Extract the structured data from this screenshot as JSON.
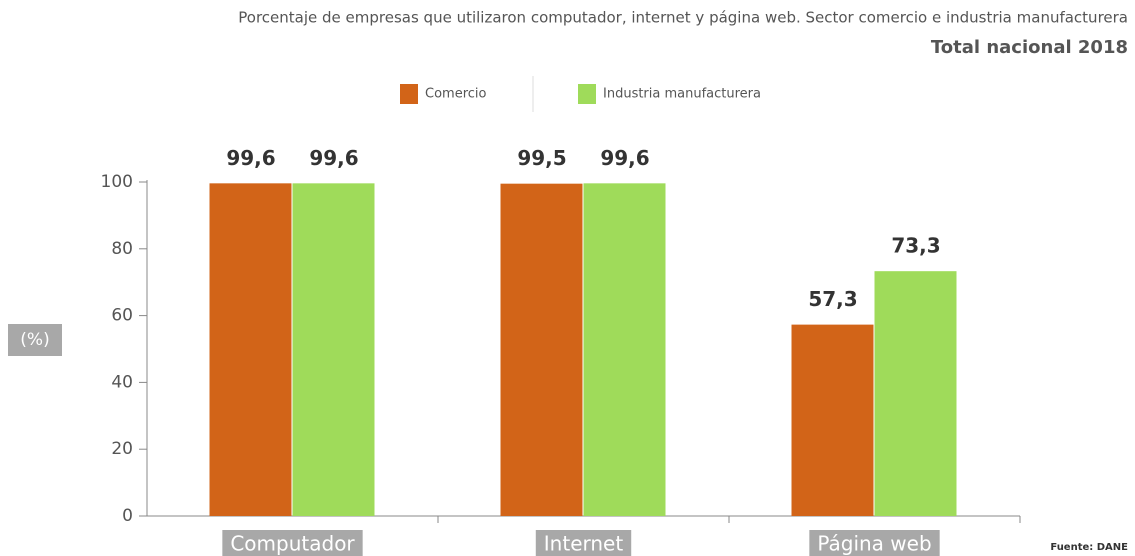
{
  "chart_data": {
    "type": "bar",
    "title": "Porcentaje de empresas que utilizaron computador, internet y página web. Sector comercio e industria manufacturera",
    "subtitle": "Total nacional  2018",
    "y_label": "(%)",
    "source": "Fuente: DANE",
    "categories": [
      "Computador",
      "Internet",
      "Página web"
    ],
    "series": [
      {
        "name": "Comercio",
        "color": "#d26418",
        "values": [
          99.6,
          99.5,
          57.3
        ],
        "value_labels": [
          "99,6",
          "99,5",
          "57,3"
        ]
      },
      {
        "name": "Industria manufacturera",
        "color": "#9fdb5a",
        "values": [
          99.6,
          99.6,
          73.3
        ],
        "value_labels": [
          "99,6",
          "99,6",
          "73,3"
        ]
      }
    ],
    "ylim": [
      0,
      100
    ],
    "yticks": [
      0,
      20,
      40,
      60,
      80,
      100
    ]
  }
}
